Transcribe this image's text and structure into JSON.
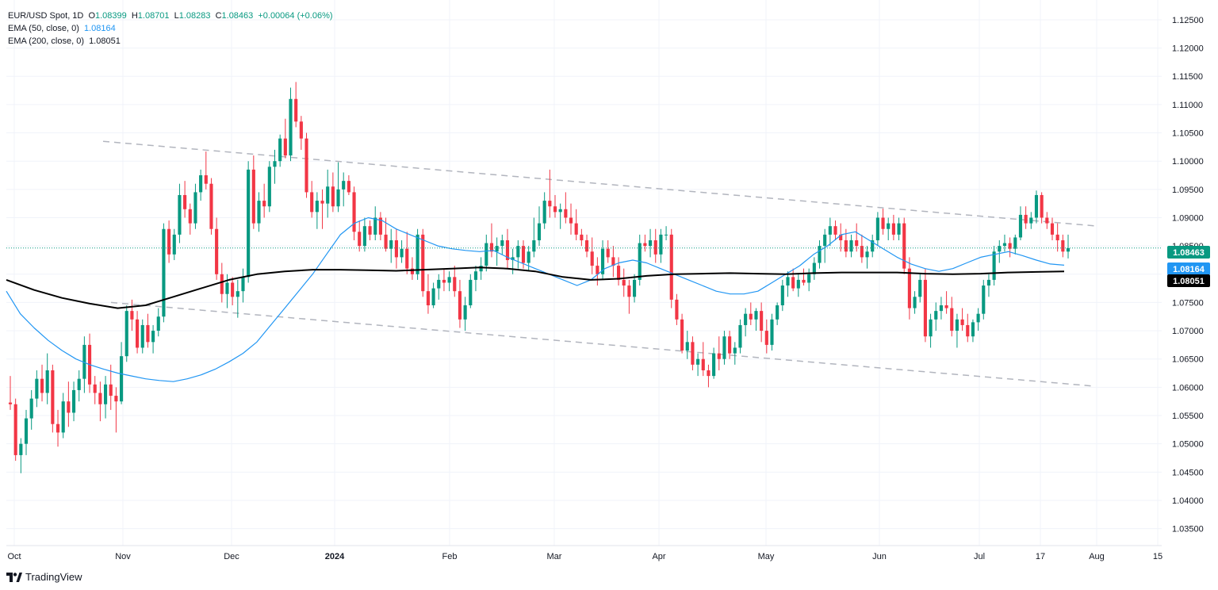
{
  "header": {
    "symbol": "EUR/USD Spot, 1D",
    "o_label": "O",
    "o": "1.08399",
    "h_label": "H",
    "h": "1.08701",
    "l_label": "L",
    "l": "1.08283",
    "c_label": "C",
    "c": "1.08463",
    "change": "+0.00064 (+0.06%)",
    "ema50_label": "EMA (50, close, 0)",
    "ema50_value": "1.08164",
    "ema200_label": "EMA (200, close, 0)",
    "ema200_value": "1.08051"
  },
  "branding": {
    "text": "TradingView"
  },
  "colors": {
    "up": "#089981",
    "down": "#f23645",
    "ema50": "#2196f3",
    "ema200": "#000000",
    "trend": "#b2b5be",
    "price_line": "#089981"
  },
  "chart_data": {
    "type": "candlestick",
    "title": "EUR/USD Spot, 1D",
    "x_ticks": [
      "Oct",
      "Nov",
      "Dec",
      "2024",
      "Feb",
      "Mar",
      "Apr",
      "May",
      "Jun",
      "Jul",
      "17",
      "Aug",
      "15"
    ],
    "y_ticks": [
      "1.12500",
      "1.12000",
      "1.11500",
      "1.11000",
      "1.10500",
      "1.10000",
      "1.09500",
      "1.09000",
      "1.08500",
      "1.08000",
      "1.07500",
      "1.07000",
      "1.06500",
      "1.06000",
      "1.05500",
      "1.05000",
      "1.04500",
      "1.04000",
      "1.03500"
    ],
    "ylim": [
      1.032,
      1.1285
    ],
    "price_tags": [
      {
        "label": "1.08463",
        "value": 1.08463,
        "color": "#089981"
      },
      {
        "label": "1.08164",
        "value": 1.08164,
        "color": "#2196f3"
      },
      {
        "label": "1.08051",
        "value": 1.08051,
        "color": "#000000"
      }
    ],
    "candles_ohlc": [
      [
        1.0573,
        1.062,
        1.056,
        1.057
      ],
      [
        1.057,
        1.058,
        1.047,
        1.048
      ],
      [
        1.048,
        1.051,
        1.0448,
        1.05
      ],
      [
        1.05,
        1.056,
        1.048,
        1.0545
      ],
      [
        1.0545,
        1.0595,
        1.0525,
        1.058
      ],
      [
        1.058,
        1.063,
        1.0565,
        1.0615
      ],
      [
        1.0615,
        1.064,
        1.0575,
        1.059
      ],
      [
        1.059,
        1.066,
        1.057,
        1.063
      ],
      [
        1.063,
        1.064,
        1.052,
        1.0535
      ],
      [
        1.0535,
        1.056,
        1.0495,
        1.052
      ],
      [
        1.052,
        1.059,
        1.051,
        1.0575
      ],
      [
        1.0575,
        1.061,
        1.053,
        1.0555
      ],
      [
        1.0555,
        1.061,
        1.054,
        1.0595
      ],
      [
        1.0595,
        1.063,
        1.0575,
        1.0615
      ],
      [
        1.0615,
        1.069,
        1.059,
        1.0675
      ],
      [
        1.0675,
        1.0695,
        1.059,
        1.0605
      ],
      [
        1.0605,
        1.062,
        1.057,
        1.059
      ],
      [
        1.059,
        1.061,
        1.054,
        1.057
      ],
      [
        1.057,
        1.062,
        1.0545,
        1.0605
      ],
      [
        1.0605,
        1.064,
        1.056,
        1.0585
      ],
      [
        1.0585,
        1.06,
        1.052,
        1.0575
      ],
      [
        1.0575,
        1.068,
        1.057,
        1.0655
      ],
      [
        1.0655,
        1.0745,
        1.0645,
        1.0735
      ],
      [
        1.0735,
        1.0755,
        1.07,
        1.072
      ],
      [
        1.072,
        1.0735,
        1.066,
        1.067
      ],
      [
        1.067,
        1.072,
        1.066,
        1.071
      ],
      [
        1.071,
        1.073,
        1.067,
        1.068
      ],
      [
        1.068,
        1.071,
        1.066,
        1.07
      ],
      [
        1.07,
        1.074,
        1.069,
        1.0725
      ],
      [
        1.0725,
        1.089,
        1.0715,
        1.088
      ],
      [
        1.088,
        1.0895,
        1.082,
        1.0835
      ],
      [
        1.0835,
        1.088,
        1.0825,
        1.087
      ],
      [
        1.087,
        1.096,
        1.0855,
        1.094
      ],
      [
        1.094,
        1.0965,
        1.09,
        1.0915
      ],
      [
        1.0915,
        1.0925,
        1.087,
        1.089
      ],
      [
        1.089,
        1.096,
        1.088,
        1.0945
      ],
      [
        1.0945,
        1.0985,
        1.093,
        1.0975
      ],
      [
        1.0975,
        1.1017,
        1.095,
        1.096
      ],
      [
        1.096,
        1.097,
        1.087,
        1.088
      ],
      [
        1.088,
        1.09,
        1.079,
        1.08
      ],
      [
        1.08,
        1.082,
        1.075,
        1.0765
      ],
      [
        1.0765,
        1.08,
        1.074,
        1.0785
      ],
      [
        1.0785,
        1.0795,
        1.0745,
        1.076
      ],
      [
        1.076,
        1.079,
        1.0723,
        1.077
      ],
      [
        1.077,
        1.081,
        1.075,
        1.0795
      ],
      [
        1.0795,
        1.1,
        1.0785,
        1.0985
      ],
      [
        1.0985,
        1.101,
        1.088,
        1.089
      ],
      [
        1.089,
        1.0945,
        1.0875,
        1.093
      ],
      [
        1.093,
        1.096,
        1.09,
        1.092
      ],
      [
        1.092,
        1.1,
        1.091,
        1.099
      ],
      [
        1.099,
        1.102,
        1.096,
        1.1
      ],
      [
        1.1,
        1.1047,
        1.099,
        1.104
      ],
      [
        1.104,
        1.1075,
        1.1005,
        1.101
      ],
      [
        1.101,
        1.113,
        1.1,
        1.111
      ],
      [
        1.111,
        1.114,
        1.106,
        1.107
      ],
      [
        1.107,
        1.108,
        1.102,
        1.104
      ],
      [
        1.104,
        1.105,
        1.0935,
        1.0945
      ],
      [
        1.0945,
        1.0965,
        1.09,
        1.091
      ],
      [
        1.091,
        1.0945,
        1.088,
        1.093
      ],
      [
        1.093,
        1.095,
        1.088,
        1.0925
      ],
      [
        1.0925,
        1.0985,
        1.09,
        1.0955
      ],
      [
        1.0955,
        1.098,
        1.091,
        1.092
      ],
      [
        1.092,
        1.0998,
        1.091,
        1.095
      ],
      [
        1.095,
        1.098,
        1.092,
        1.0965
      ],
      [
        1.0965,
        1.0975,
        1.094,
        1.0945
      ],
      [
        1.0945,
        1.0955,
        1.086,
        1.0875
      ],
      [
        1.0875,
        1.0895,
        1.084,
        1.085
      ],
      [
        1.085,
        1.09,
        1.084,
        1.0885
      ],
      [
        1.0885,
        1.0895,
        1.086,
        1.087
      ],
      [
        1.087,
        1.092,
        1.086,
        1.09
      ],
      [
        1.09,
        1.091,
        1.086,
        1.087
      ],
      [
        1.087,
        1.09,
        1.084,
        1.0845
      ],
      [
        1.0845,
        1.088,
        1.082,
        1.086
      ],
      [
        1.086,
        1.088,
        1.081,
        1.083
      ],
      [
        1.083,
        1.086,
        1.082,
        1.0845
      ],
      [
        1.0845,
        1.0875,
        1.08,
        1.081
      ],
      [
        1.081,
        1.083,
        1.079,
        1.08
      ],
      [
        1.08,
        1.088,
        1.079,
        1.087
      ],
      [
        1.087,
        1.088,
        1.076,
        1.077
      ],
      [
        1.077,
        1.08,
        1.073,
        1.0745
      ],
      [
        1.0745,
        1.0785,
        1.074,
        1.0775
      ],
      [
        1.0775,
        1.08,
        1.0755,
        1.079
      ],
      [
        1.079,
        1.081,
        1.077,
        1.0785
      ],
      [
        1.0785,
        1.0805,
        1.077,
        1.0795
      ],
      [
        1.0795,
        1.0815,
        1.076,
        1.077
      ],
      [
        1.077,
        1.079,
        1.0705,
        1.072
      ],
      [
        1.072,
        1.076,
        1.07,
        1.0745
      ],
      [
        1.0745,
        1.08,
        1.074,
        1.079
      ],
      [
        1.079,
        1.0815,
        1.077,
        1.0805
      ],
      [
        1.0805,
        1.083,
        1.079,
        1.0815
      ],
      [
        1.0815,
        1.087,
        1.0805,
        1.0855
      ],
      [
        1.0855,
        1.089,
        1.083,
        1.084
      ],
      [
        1.084,
        1.0865,
        1.0815,
        1.085
      ],
      [
        1.085,
        1.087,
        1.0835,
        1.086
      ],
      [
        1.086,
        1.088,
        1.081,
        1.0825
      ],
      [
        1.0825,
        1.0845,
        1.08,
        1.083
      ],
      [
        1.083,
        1.086,
        1.081,
        1.085
      ],
      [
        1.085,
        1.086,
        1.081,
        1.082
      ],
      [
        1.082,
        1.085,
        1.0805,
        1.084
      ],
      [
        1.084,
        1.09,
        1.083,
        1.086
      ],
      [
        1.086,
        1.092,
        1.085,
        1.089
      ],
      [
        1.089,
        1.0945,
        1.088,
        1.093
      ],
      [
        1.093,
        1.0985,
        1.09,
        1.092
      ],
      [
        1.092,
        1.094,
        1.09,
        1.091
      ],
      [
        1.091,
        1.0925,
        1.088,
        1.0915
      ],
      [
        1.0915,
        1.0945,
        1.089,
        1.09
      ],
      [
        1.09,
        1.0925,
        1.087,
        1.089
      ],
      [
        1.089,
        1.0915,
        1.086,
        1.087
      ],
      [
        1.087,
        1.088,
        1.085,
        1.086
      ],
      [
        1.086,
        1.087,
        1.083,
        1.084
      ],
      [
        1.084,
        1.0865,
        1.08,
        1.0815
      ],
      [
        1.0815,
        1.083,
        1.078,
        1.08
      ],
      [
        1.08,
        1.086,
        1.079,
        1.0845
      ],
      [
        1.0845,
        1.086,
        1.082,
        1.083
      ],
      [
        1.083,
        1.085,
        1.0795,
        1.0815
      ],
      [
        1.0815,
        1.083,
        1.078,
        1.079
      ],
      [
        1.079,
        1.081,
        1.076,
        1.078
      ],
      [
        1.078,
        1.079,
        1.073,
        1.076
      ],
      [
        1.076,
        1.08,
        1.075,
        1.079
      ],
      [
        1.079,
        1.087,
        1.078,
        1.0855
      ],
      [
        1.0855,
        1.087,
        1.084,
        1.085
      ],
      [
        1.085,
        1.088,
        1.083,
        1.086
      ],
      [
        1.086,
        1.088,
        1.082,
        1.0835
      ],
      [
        1.0835,
        1.088,
        1.082,
        1.087
      ],
      [
        1.087,
        1.0885,
        1.086,
        1.087
      ],
      [
        1.087,
        1.088,
        1.074,
        1.0755
      ],
      [
        1.0755,
        1.0765,
        1.071,
        1.072
      ],
      [
        1.072,
        1.073,
        1.066,
        1.0665
      ],
      [
        1.0665,
        1.07,
        1.065,
        1.068
      ],
      [
        1.068,
        1.069,
        1.063,
        1.064
      ],
      [
        1.064,
        1.066,
        1.062,
        1.065
      ],
      [
        1.065,
        1.068,
        1.062,
        1.063
      ],
      [
        1.063,
        1.064,
        1.06,
        1.062
      ],
      [
        1.062,
        1.067,
        1.0615,
        1.066
      ],
      [
        1.066,
        1.069,
        1.063,
        1.065
      ],
      [
        1.065,
        1.07,
        1.064,
        1.069
      ],
      [
        1.069,
        1.07,
        1.065,
        1.066
      ],
      [
        1.066,
        1.068,
        1.064,
        1.067
      ],
      [
        1.067,
        1.072,
        1.066,
        1.071
      ],
      [
        1.071,
        1.074,
        1.069,
        1.073
      ],
      [
        1.073,
        1.075,
        1.071,
        1.072
      ],
      [
        1.072,
        1.074,
        1.07,
        1.0735
      ],
      [
        1.0735,
        1.075,
        1.068,
        1.07
      ],
      [
        1.07,
        1.072,
        1.066,
        1.0675
      ],
      [
        1.0675,
        1.073,
        1.0665,
        1.072
      ],
      [
        1.072,
        1.075,
        1.071,
        1.0745
      ],
      [
        1.0745,
        1.079,
        1.0735,
        1.078
      ],
      [
        1.078,
        1.0805,
        1.076,
        1.0795
      ],
      [
        1.0795,
        1.081,
        1.077,
        1.0775
      ],
      [
        1.0775,
        1.08,
        1.076,
        1.079
      ],
      [
        1.079,
        1.081,
        1.078,
        1.0785
      ],
      [
        1.0785,
        1.081,
        1.077,
        1.08
      ],
      [
        1.08,
        1.083,
        1.079,
        1.082
      ],
      [
        1.082,
        1.086,
        1.081,
        1.085
      ],
      [
        1.085,
        1.088,
        1.082,
        1.087
      ],
      [
        1.087,
        1.09,
        1.085,
        1.0885
      ],
      [
        1.0885,
        1.0895,
        1.086,
        1.087
      ],
      [
        1.087,
        1.089,
        1.084,
        1.086
      ],
      [
        1.086,
        1.088,
        1.083,
        1.084
      ],
      [
        1.084,
        1.087,
        1.083,
        1.086
      ],
      [
        1.086,
        1.089,
        1.084,
        1.085
      ],
      [
        1.085,
        1.087,
        1.082,
        1.083
      ],
      [
        1.083,
        1.085,
        1.081,
        1.084
      ],
      [
        1.084,
        1.087,
        1.083,
        1.086
      ],
      [
        1.086,
        1.091,
        1.085,
        1.09
      ],
      [
        1.09,
        1.0916,
        1.087,
        1.088
      ],
      [
        1.088,
        1.09,
        1.086,
        1.089
      ],
      [
        1.089,
        1.0905,
        1.086,
        1.087
      ],
      [
        1.087,
        1.09,
        1.086,
        1.089
      ],
      [
        1.089,
        1.09,
        1.08,
        1.081
      ],
      [
        1.081,
        1.083,
        1.072,
        1.074
      ],
      [
        1.074,
        1.077,
        1.073,
        1.076
      ],
      [
        1.076,
        1.08,
        1.075,
        1.079
      ],
      [
        1.079,
        1.081,
        1.068,
        1.069
      ],
      [
        1.069,
        1.073,
        1.067,
        1.072
      ],
      [
        1.072,
        1.075,
        1.07,
        1.0735
      ],
      [
        1.0735,
        1.076,
        1.072,
        1.0745
      ],
      [
        1.0745,
        1.077,
        1.073,
        1.074
      ],
      [
        1.074,
        1.076,
        1.069,
        1.07
      ],
      [
        1.07,
        1.073,
        1.067,
        1.072
      ],
      [
        1.072,
        1.074,
        1.07,
        1.071
      ],
      [
        1.071,
        1.073,
        1.068,
        1.069
      ],
      [
        1.069,
        1.072,
        1.068,
        1.0715
      ],
      [
        1.0715,
        1.074,
        1.07,
        1.073
      ],
      [
        1.073,
        1.079,
        1.072,
        1.078
      ],
      [
        1.078,
        1.08,
        1.076,
        1.079
      ],
      [
        1.079,
        1.085,
        1.078,
        1.084
      ],
      [
        1.084,
        1.086,
        1.082,
        1.085
      ],
      [
        1.085,
        1.087,
        1.084,
        1.0855
      ],
      [
        1.0855,
        1.0865,
        1.083,
        1.0845
      ],
      [
        1.0845,
        1.087,
        1.0835,
        1.0865
      ],
      [
        1.0865,
        1.092,
        1.086,
        1.0905
      ],
      [
        1.0905,
        1.092,
        1.088,
        1.089
      ],
      [
        1.089,
        1.091,
        1.088,
        1.09
      ],
      [
        1.09,
        1.0948,
        1.089,
        1.094
      ],
      [
        1.094,
        1.0945,
        1.089,
        1.09
      ],
      [
        1.09,
        1.091,
        1.088,
        1.089
      ],
      [
        1.089,
        1.09,
        1.086,
        1.087
      ],
      [
        1.087,
        1.089,
        1.084,
        1.086
      ],
      [
        1.086,
        1.087,
        1.083,
        1.084
      ],
      [
        1.084,
        1.087,
        1.0828,
        1.0846
      ]
    ],
    "ema50": [
      1.077,
      1.073,
      1.0705,
      1.0683,
      1.0665,
      1.065,
      1.064,
      1.0632,
      1.0625,
      1.062,
      1.0615,
      1.0612,
      1.061,
      1.0615,
      1.0622,
      1.0632,
      1.0645,
      1.066,
      1.068,
      1.071,
      1.074,
      1.077,
      1.08,
      1.0835,
      1.087,
      1.089,
      1.09,
      1.0895,
      1.088,
      1.087,
      1.086,
      1.085,
      1.0845,
      1.0842,
      1.084,
      1.0842,
      1.083,
      1.082,
      1.081,
      1.08,
      1.079,
      1.078,
      1.079,
      1.081,
      1.082,
      1.0825,
      1.082,
      1.081,
      1.08,
      1.079,
      1.078,
      1.077,
      1.0765,
      1.0765,
      1.077,
      1.0785,
      1.08,
      1.0815,
      1.0835,
      1.085,
      1.087,
      1.0875,
      1.086,
      1.0845,
      1.083,
      1.0818,
      1.081,
      1.0805,
      1.081,
      1.082,
      1.083,
      1.0835,
      1.084,
      1.0833,
      1.0825,
      1.0818,
      1.0816
    ],
    "ema200": [
      1.079,
      1.0772,
      1.0758,
      1.0748,
      1.074,
      1.0745,
      1.076,
      1.0775,
      1.079,
      1.08,
      1.0805,
      1.0808,
      1.0808,
      1.0807,
      1.0806,
      1.0808,
      1.081,
      1.0812,
      1.081,
      1.0805,
      1.0795,
      1.079,
      1.0792,
      1.0797,
      1.08,
      1.0801,
      1.0802,
      1.0801,
      1.08,
      1.0802,
      1.0803,
      1.0803,
      1.0803,
      1.0801,
      1.08,
      1.0801,
      1.0803,
      1.0804,
      1.0805
    ],
    "trend_upper": {
      "from": [
        1.1035,
        0
      ],
      "to": [
        1.0885,
        1
      ]
    },
    "trend_lower": {
      "from": [
        1.075,
        0
      ],
      "to": [
        1.0602,
        1
      ]
    }
  }
}
